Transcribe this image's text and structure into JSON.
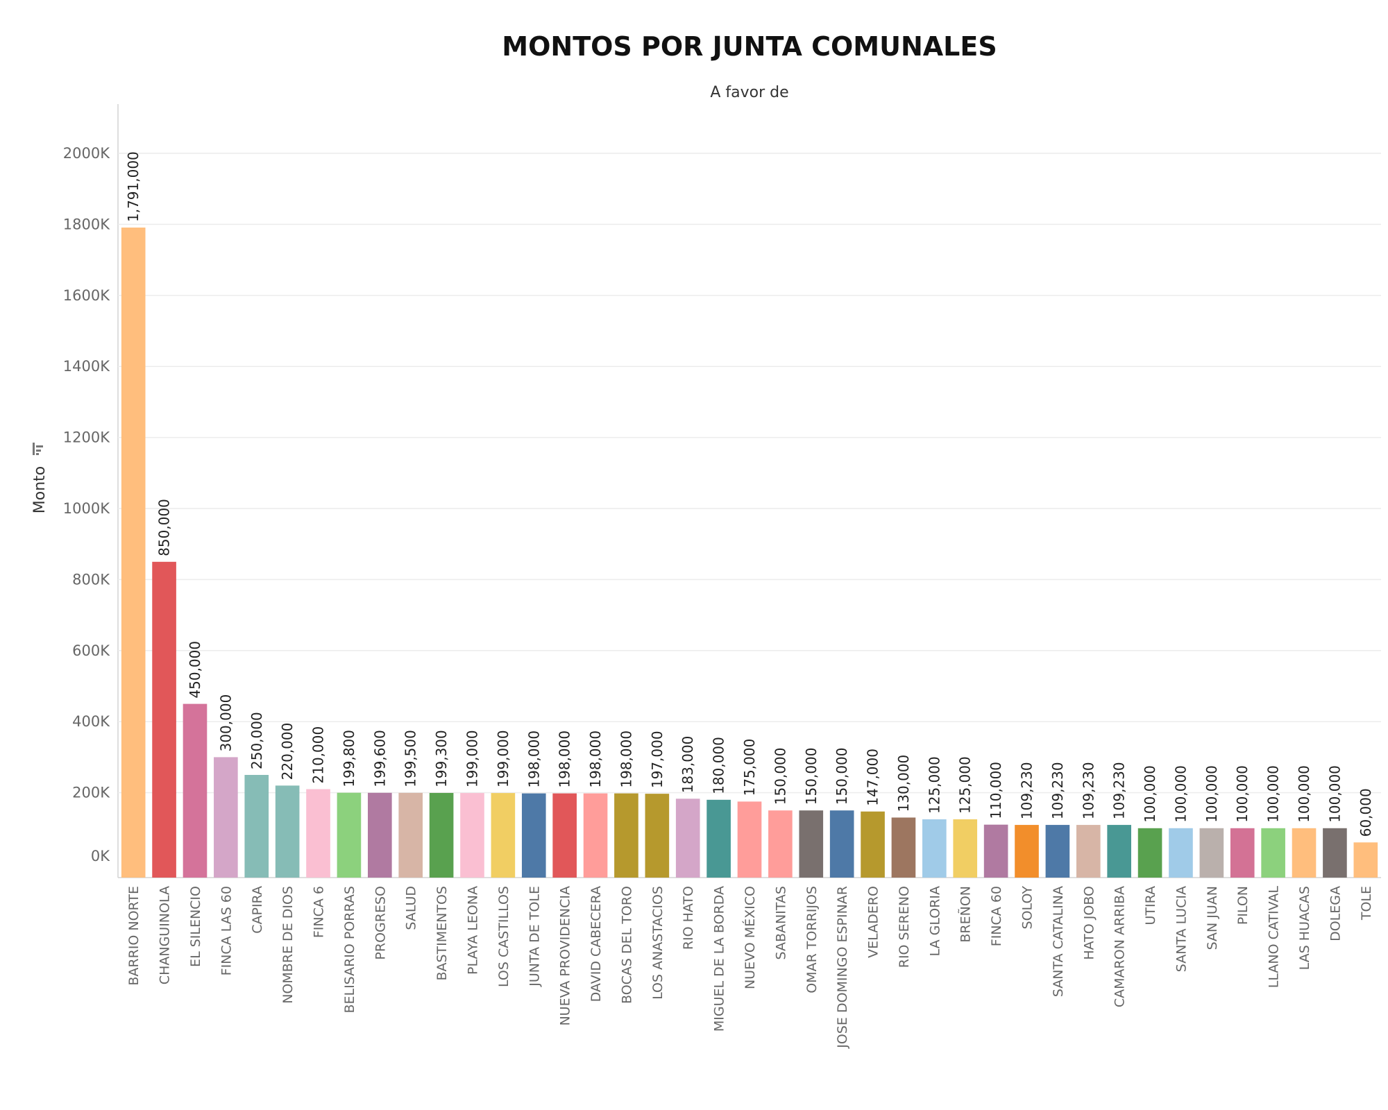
{
  "chart_data": {
    "type": "bar",
    "title": "MONTOS POR JUNTA COMUNALES",
    "subtitle": "A favor de",
    "ylabel": "Monto",
    "ylim": [
      0,
      2000000
    ],
    "yticks": [
      0,
      200000,
      400000,
      600000,
      800000,
      1000000,
      1200000,
      1400000,
      1600000,
      1800000,
      2000000
    ],
    "ytick_labels": [
      "0K",
      "200K",
      "400K",
      "600K",
      "800K",
      "1000K",
      "1200K",
      "1400K",
      "1600K",
      "1800K",
      "2000K"
    ],
    "grid": true,
    "categories": [
      "BARRIO NORTE",
      "CHANGUINOLA",
      "EL SILENCIO",
      "FINCA LAS 60",
      "CAPIRA",
      "NOMBRE DE DIOS",
      "FINCA 6",
      "BELISARIO PORRAS",
      "PROGRESO",
      "SALUD",
      "BASTIMENTOS",
      "PLAYA LEONA",
      "LOS CASTILLOS",
      "JUNTA DE TOLE",
      "NUEVA PROVIDENCIA",
      "DAVID CABECERA",
      "BOCAS DEL TORO",
      "LOS ANASTACIOS",
      "RIO HATO",
      "MIGUEL DE LA BORDA",
      "NUEVO MÉXICO",
      "SABANITAS",
      "OMAR TORRIJOS",
      "JOSE DOMINGO ESPINAR",
      "VELADERO",
      "RIO SERENO",
      "LA GLORIA",
      "BREÑON",
      "FINCA 60",
      "SOLOY",
      "SANTA CATALINA",
      "HATO JOBO",
      "CAMARON ARRIBA",
      "UTIRA",
      "SANTA LUCIA",
      "SAN JUAN",
      "PILON",
      "LLANO CATIVAL",
      "LAS HUACAS",
      "DOLEGA",
      "TOLE"
    ],
    "values": [
      1791000,
      850000,
      450000,
      300000,
      250000,
      220000,
      210000,
      199800,
      199600,
      199500,
      199300,
      199000,
      199000,
      198000,
      198000,
      198000,
      198000,
      197000,
      183000,
      180000,
      175000,
      150000,
      150000,
      150000,
      147000,
      130000,
      125000,
      125000,
      110000,
      109230,
      109230,
      109230,
      109230,
      100000,
      100000,
      100000,
      100000,
      100000,
      100000,
      100000,
      60000
    ],
    "value_labels": [
      "1,791,000",
      "850,000",
      "450,000",
      "300,000",
      "250,000",
      "220,000",
      "210,000",
      "199,800",
      "199,600",
      "199,500",
      "199,300",
      "199,000",
      "199,000",
      "198,000",
      "198,000",
      "198,000",
      "198,000",
      "197,000",
      "183,000",
      "180,000",
      "175,000",
      "150,000",
      "150,000",
      "150,000",
      "147,000",
      "130,000",
      "125,000",
      "125,000",
      "110,000",
      "109,230",
      "109,230",
      "109,230",
      "109,230",
      "100,000",
      "100,000",
      "100,000",
      "100,000",
      "100,000",
      "100,000",
      "100,000",
      "60,000"
    ],
    "colors": [
      "#ffbe7d",
      "#e15759",
      "#d4739a",
      "#d4a6c8",
      "#86bcb6",
      "#86bcb6",
      "#fabfd2",
      "#8cd17d",
      "#b07aa1",
      "#d7b5a6",
      "#59a14f",
      "#fabfd2",
      "#f1ce63",
      "#4e79a7",
      "#e15759",
      "#ff9d9a",
      "#b6992d",
      "#b6992d",
      "#d4a6c8",
      "#499894",
      "#ff9d9a",
      "#ff9d9a",
      "#79706e",
      "#4e79a7",
      "#b6992d",
      "#9d7660",
      "#a0cbe8",
      "#f1ce63",
      "#b07aa1",
      "#f28e2b",
      "#4e79a7",
      "#d7b5a6",
      "#499894",
      "#59a14f",
      "#a0cbe8",
      "#bab0ac",
      "#d37295",
      "#8cd17d",
      "#ffbe7d",
      "#79706e",
      "#ffbe7d"
    ]
  }
}
